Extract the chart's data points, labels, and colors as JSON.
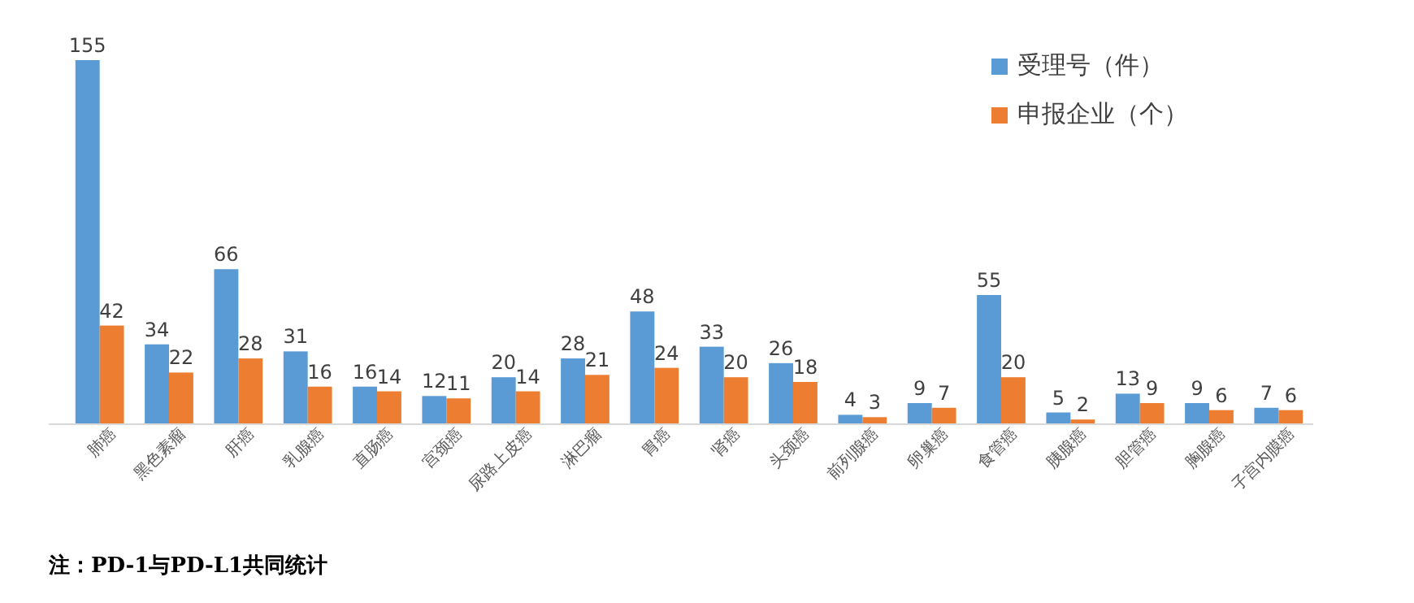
{
  "chart_data": {
    "type": "bar",
    "categories": [
      "肺癌",
      "黑色素瘤",
      "肝癌",
      "乳腺癌",
      "直肠癌",
      "宫颈癌",
      "尿路上皮癌",
      "淋巴瘤",
      "胃癌",
      "肾癌",
      "头颈癌",
      "前列腺癌",
      "卵巢癌",
      "食管癌",
      "胰腺癌",
      "胆管癌",
      "胸腺癌",
      "子宫内膜癌"
    ],
    "series": [
      {
        "name": "受理号（件）",
        "color": "#5b9bd5",
        "values": [
          155,
          34,
          66,
          31,
          16,
          12,
          20,
          28,
          48,
          33,
          26,
          4,
          9,
          55,
          5,
          13,
          9,
          7
        ]
      },
      {
        "name": "申报企业（个）",
        "color": "#ed7d31",
        "values": [
          42,
          22,
          28,
          16,
          14,
          11,
          14,
          21,
          24,
          20,
          18,
          3,
          7,
          20,
          2,
          9,
          6,
          6
        ]
      }
    ],
    "data_labels": true,
    "legend": "top right",
    "grid": false,
    "annotations": [
      "注：PD-1与PD-L1共同统计"
    ]
  }
}
